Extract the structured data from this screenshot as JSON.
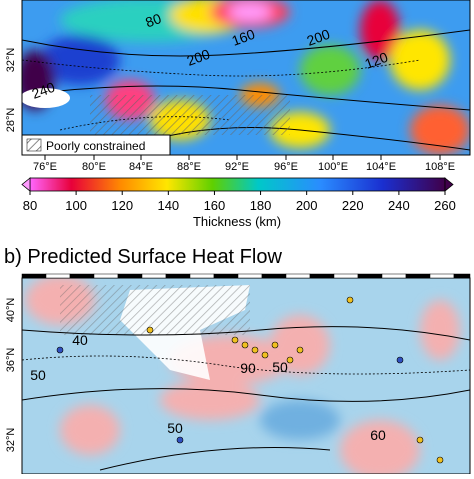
{
  "panel_a": {
    "lat_labels": [
      "32°N",
      "28°N"
    ],
    "contour_labels": [
      "80",
      "160",
      "200",
      "200",
      "120",
      "240"
    ],
    "legend": "Poorly constrained",
    "lon_labels": [
      "76°E",
      "80°E",
      "84°E",
      "88°E",
      "92°E",
      "96°E",
      "100°E",
      "104°E",
      "108°E"
    ],
    "colorbar": {
      "ticks": [
        80,
        100,
        120,
        140,
        160,
        180,
        200,
        220,
        240,
        260
      ],
      "label": "Thickness (km)"
    }
  },
  "panel_b": {
    "title": "b) Predicted Surface Heat Flow",
    "lat_labels": [
      "40°N",
      "36°N",
      "32°N"
    ],
    "contour_labels": [
      "40",
      "50",
      "90",
      "50",
      "50",
      "60"
    ]
  }
}
